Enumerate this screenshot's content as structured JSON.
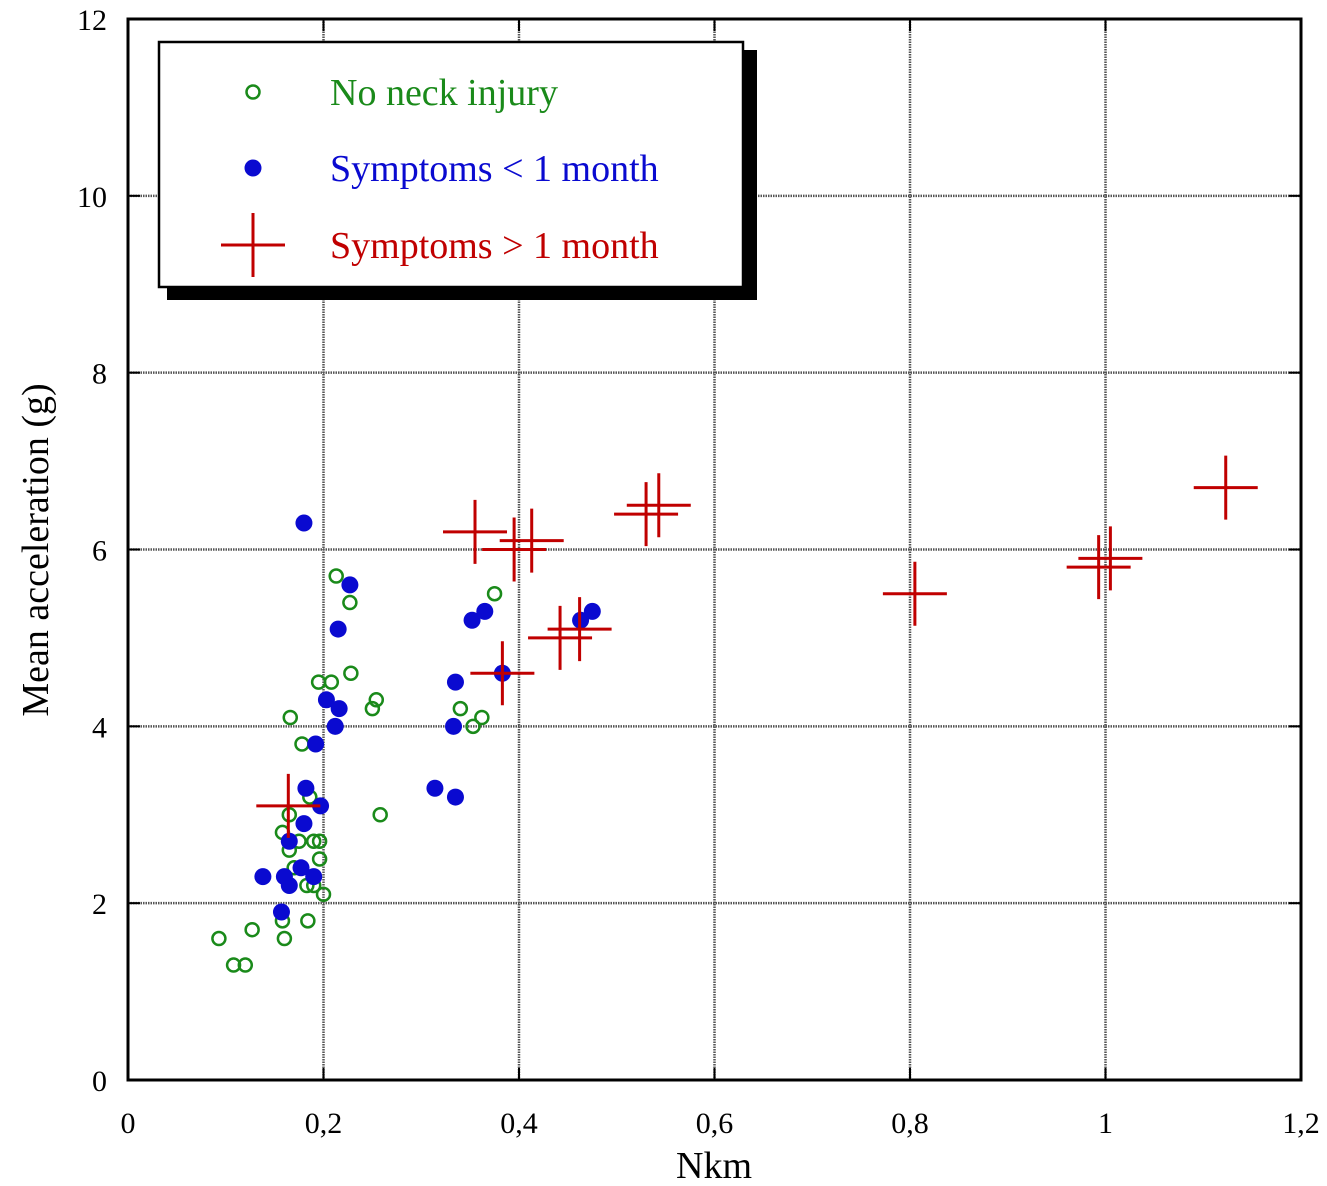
{
  "chart_data": {
    "type": "scatter",
    "xlabel": "Nkm",
    "ylabel": "Mean acceleration (g)",
    "xlim": [
      0,
      1.2
    ],
    "ylim": [
      0,
      12
    ],
    "x_ticks": [
      0,
      0.2,
      0.4,
      0.6,
      0.8,
      1,
      1.2
    ],
    "x_tick_labels": [
      "0",
      "0,2",
      "0,4",
      "0,6",
      "0,8",
      "1",
      "1,2"
    ],
    "y_ticks": [
      0,
      2,
      4,
      6,
      8,
      10,
      12
    ],
    "y_tick_labels": [
      "0",
      "2",
      "4",
      "6",
      "8",
      "10",
      "12"
    ],
    "grid": true,
    "legend_position": "top-left",
    "series": [
      {
        "name": "No neck injury",
        "marker": "open-circle",
        "color": "#1a8a1a",
        "points": [
          [
            0.093,
            1.6
          ],
          [
            0.108,
            1.3
          ],
          [
            0.12,
            1.3
          ],
          [
            0.127,
            1.7
          ],
          [
            0.158,
            1.8
          ],
          [
            0.16,
            1.6
          ],
          [
            0.184,
            1.8
          ],
          [
            0.158,
            2.8
          ],
          [
            0.165,
            2.6
          ],
          [
            0.165,
            3.0
          ],
          [
            0.17,
            2.4
          ],
          [
            0.175,
            2.7
          ],
          [
            0.183,
            2.2
          ],
          [
            0.19,
            2.2
          ],
          [
            0.19,
            2.7
          ],
          [
            0.196,
            2.7
          ],
          [
            0.196,
            2.5
          ],
          [
            0.2,
            2.1
          ],
          [
            0.186,
            3.2
          ],
          [
            0.178,
            3.8
          ],
          [
            0.166,
            4.1
          ],
          [
            0.195,
            4.5
          ],
          [
            0.208,
            4.5
          ],
          [
            0.228,
            4.6
          ],
          [
            0.213,
            5.7
          ],
          [
            0.227,
            5.4
          ],
          [
            0.25,
            4.2
          ],
          [
            0.254,
            4.3
          ],
          [
            0.258,
            3.0
          ],
          [
            0.34,
            4.2
          ],
          [
            0.353,
            4.0
          ],
          [
            0.362,
            4.1
          ],
          [
            0.375,
            5.5
          ]
        ]
      },
      {
        "name": "Symptoms < 1 month",
        "marker": "filled-circle",
        "color": "#0a0ad0",
        "points": [
          [
            0.138,
            2.3
          ],
          [
            0.157,
            1.9
          ],
          [
            0.16,
            2.3
          ],
          [
            0.165,
            2.2
          ],
          [
            0.165,
            2.7
          ],
          [
            0.177,
            2.4
          ],
          [
            0.18,
            2.9
          ],
          [
            0.182,
            3.3
          ],
          [
            0.19,
            2.3
          ],
          [
            0.192,
            3.8
          ],
          [
            0.197,
            3.1
          ],
          [
            0.203,
            4.3
          ],
          [
            0.212,
            4.0
          ],
          [
            0.216,
            4.2
          ],
          [
            0.215,
            5.1
          ],
          [
            0.227,
            5.6
          ],
          [
            0.18,
            6.3
          ],
          [
            0.314,
            3.3
          ],
          [
            0.335,
            3.2
          ],
          [
            0.333,
            4.0
          ],
          [
            0.335,
            4.5
          ],
          [
            0.352,
            5.2
          ],
          [
            0.365,
            5.3
          ],
          [
            0.383,
            4.6
          ],
          [
            0.463,
            5.2
          ],
          [
            0.475,
            5.3
          ]
        ]
      },
      {
        "name": "Symptoms > 1 month",
        "marker": "cross",
        "color": "#c00000",
        "points": [
          [
            0.164,
            3.1
          ],
          [
            0.355,
            6.2
          ],
          [
            0.395,
            6.0
          ],
          [
            0.413,
            6.1
          ],
          [
            0.383,
            4.6
          ],
          [
            0.442,
            5.0
          ],
          [
            0.462,
            5.1
          ],
          [
            0.53,
            6.4
          ],
          [
            0.543,
            6.5
          ],
          [
            0.805,
            5.5
          ],
          [
            0.993,
            5.8
          ],
          [
            1.005,
            5.9
          ],
          [
            1.123,
            6.7
          ]
        ]
      }
    ]
  }
}
